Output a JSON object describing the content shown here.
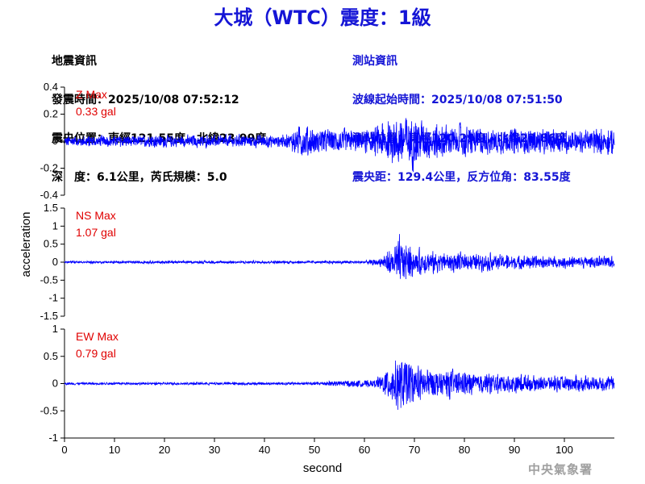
{
  "title": "大城（WTC）震度：1級",
  "quake_info": {
    "header": "地震資訊",
    "time": "發震時間：2025/10/08 07:52:12",
    "location": "震央位置：東經121.55度，北緯23.99度",
    "depth_magnitude": "深　度：6.1公里，芮氏規模：5.0"
  },
  "station_info": {
    "header": "測站資訊",
    "wave_start": "波線起始時間：2025/10/08 07:51:50",
    "location": "測站位置：東經120.29度，北緯23.86度",
    "distance": "震央距：129.4公里，反方位角：83.55度"
  },
  "agency": "中央氣象署",
  "chart_data": {
    "type": "line",
    "xlabel": "second",
    "ylabel": "acceleration",
    "xlim": [
      0,
      110
    ],
    "xticks": [
      "0",
      "10",
      "20",
      "30",
      "40",
      "50",
      "60",
      "70",
      "80",
      "90",
      "100"
    ],
    "colors": {
      "trace": "#0000ff",
      "max_label": "#e00000",
      "title": "#1515d6"
    },
    "panels": [
      {
        "component": "Z",
        "max_label": "Z Max",
        "max_value": "0.33 gal",
        "ylim": [
          -0.4,
          0.4
        ],
        "yticks": [
          "0.4",
          "0.2",
          "0",
          "-0.2",
          "-0.4"
        ],
        "envelope": [
          [
            0,
            0.06
          ],
          [
            45,
            0.07
          ],
          [
            47,
            0.18
          ],
          [
            50,
            0.14
          ],
          [
            60,
            0.12
          ],
          [
            66,
            0.24
          ],
          [
            68,
            0.32
          ],
          [
            72,
            0.2
          ],
          [
            85,
            0.14
          ],
          [
            100,
            0.12
          ],
          [
            110,
            0.14
          ]
        ]
      },
      {
        "component": "NS",
        "max_label": "NS Max",
        "max_value": "1.07 gal",
        "ylim": [
          -1.5,
          1.5
        ],
        "yticks": [
          "1.5",
          "1",
          "0.5",
          "0",
          "-0.5",
          "-1",
          "-1.5"
        ],
        "envelope": [
          [
            0,
            0.05
          ],
          [
            60,
            0.06
          ],
          [
            63,
            0.15
          ],
          [
            66,
            0.7
          ],
          [
            67,
            1.07
          ],
          [
            70,
            0.5
          ],
          [
            80,
            0.35
          ],
          [
            95,
            0.25
          ],
          [
            110,
            0.22
          ]
        ]
      },
      {
        "component": "EW",
        "max_label": "EW Max",
        "max_value": "0.79 gal",
        "ylim": [
          -1,
          1
        ],
        "yticks": [
          "1",
          "0.5",
          "0",
          "-0.5",
          "-1"
        ],
        "envelope": [
          [
            0,
            0.03
          ],
          [
            48,
            0.04
          ],
          [
            55,
            0.08
          ],
          [
            62,
            0.1
          ],
          [
            65,
            0.45
          ],
          [
            67,
            0.79
          ],
          [
            70,
            0.5
          ],
          [
            80,
            0.3
          ],
          [
            95,
            0.22
          ],
          [
            110,
            0.2
          ]
        ]
      }
    ]
  }
}
